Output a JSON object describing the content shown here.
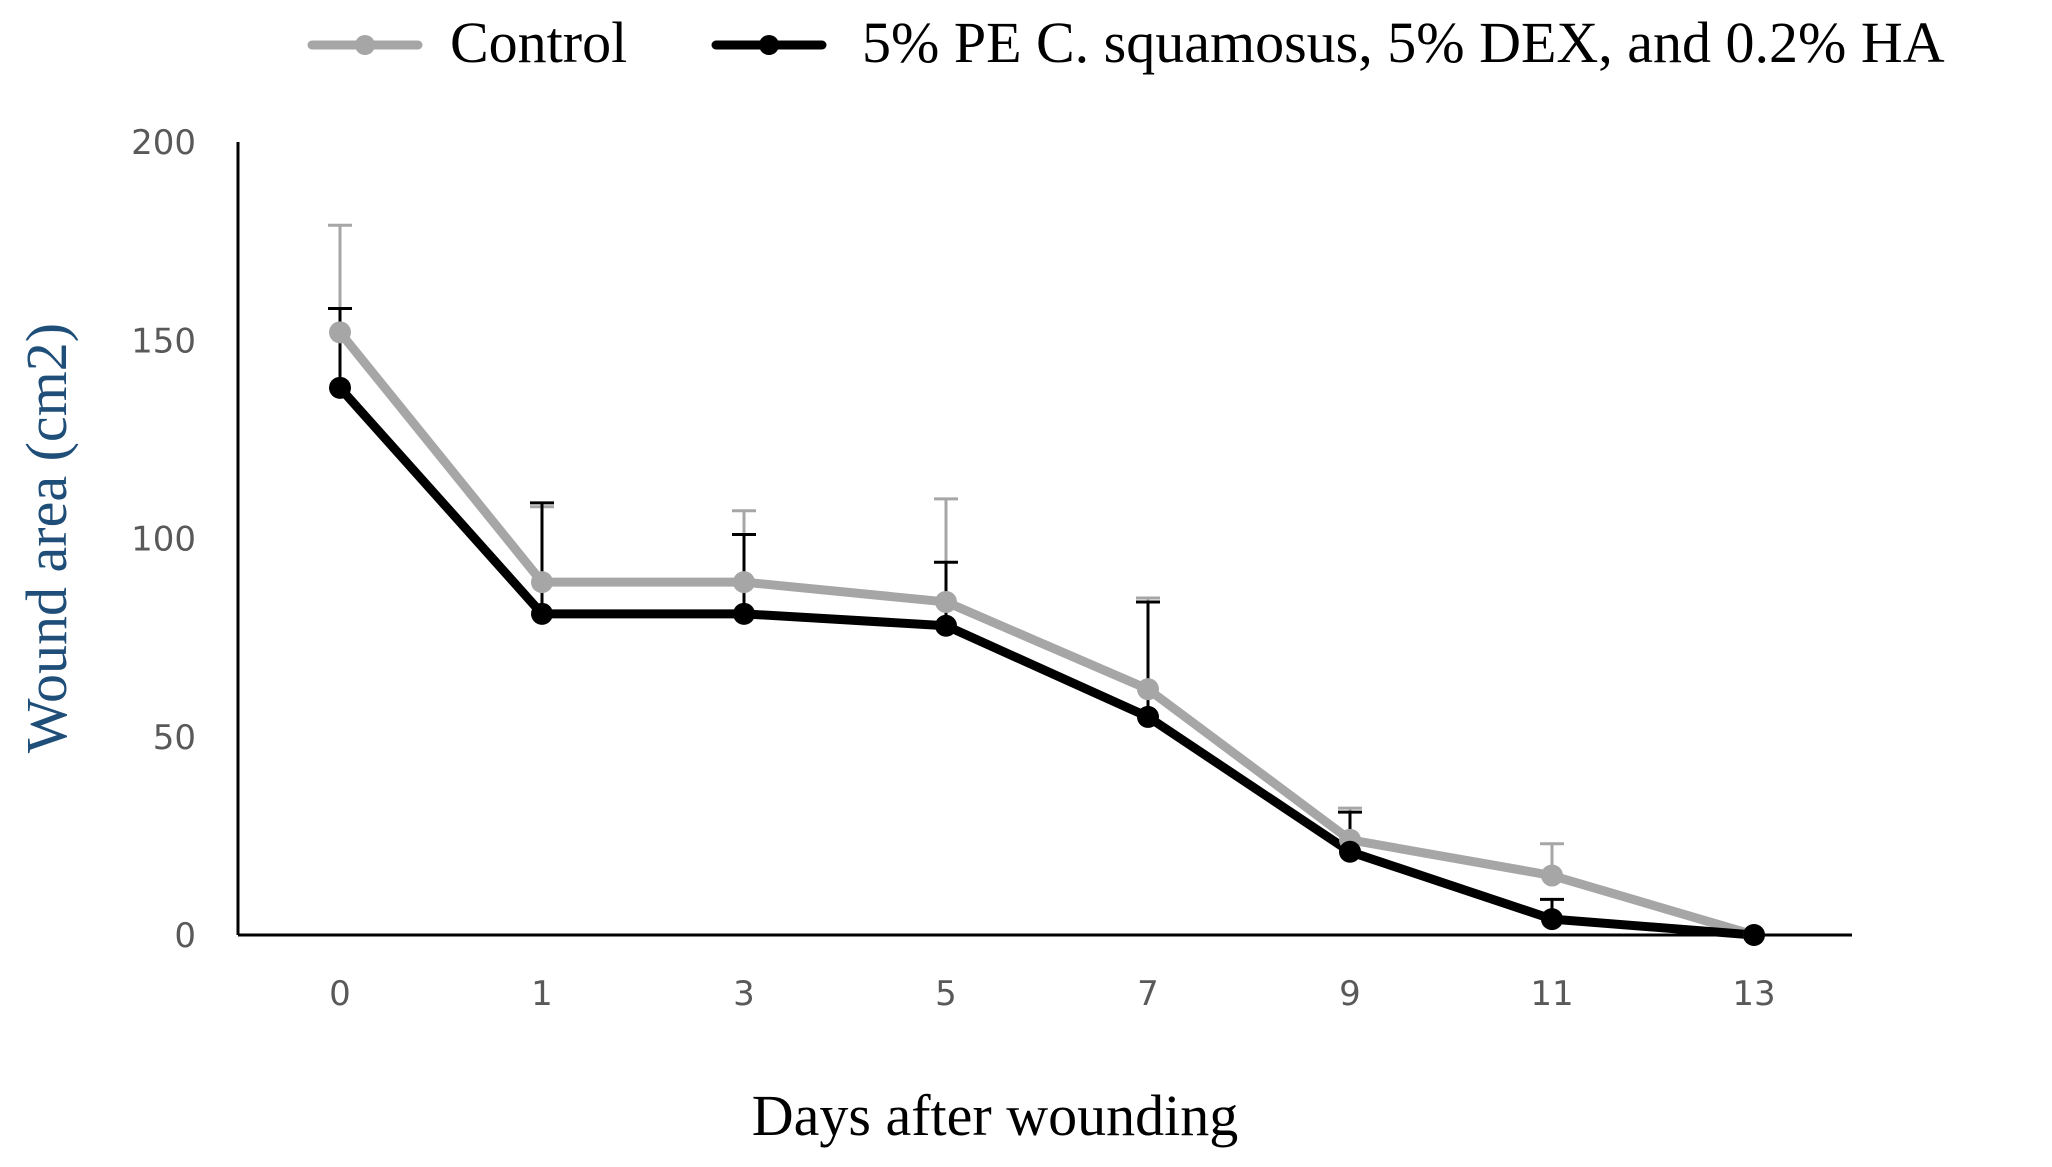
{
  "chart_data": {
    "type": "line",
    "title": "",
    "xlabel": "Days after wounding",
    "ylabel": "Wound area (cm2)",
    "categories": [
      "0",
      "1",
      "3",
      "5",
      "7",
      "9",
      "11",
      "13"
    ],
    "ylim": [
      0,
      200
    ],
    "yticks": [
      "0",
      "50",
      "100",
      "150",
      "200"
    ],
    "grid": false,
    "legend_position": "top",
    "series": [
      {
        "name": "Control",
        "color": "#a6a6a6",
        "values": [
          152,
          89,
          89,
          84,
          62,
          24,
          15,
          0
        ],
        "error_upper": [
          179,
          108,
          107,
          110,
          85,
          32,
          23,
          0
        ]
      },
      {
        "name": "5% PE C. squamosus, 5% DEX, and 0.2% HA",
        "color": "#000000",
        "values": [
          138,
          81,
          81,
          78,
          55,
          21,
          4,
          0
        ],
        "error_upper": [
          158,
          109,
          101,
          94,
          84,
          31,
          9,
          0
        ]
      }
    ]
  }
}
